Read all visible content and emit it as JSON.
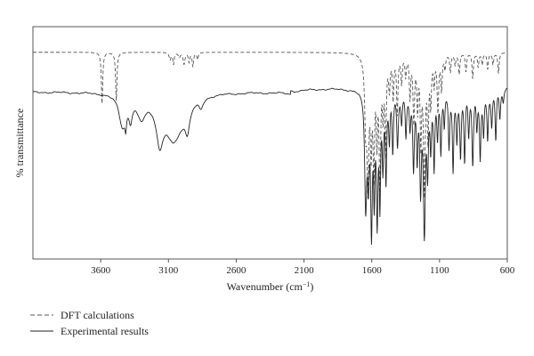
{
  "chart_data": {
    "type": "line",
    "title": "",
    "xlabel": "Wavenumber (cm",
    "xlabel_sup": "−1",
    "xlabel_close": ")",
    "ylabel": "% transmittance",
    "x_reversed": true,
    "xlim": [
      4100,
      600
    ],
    "ylim": [
      0,
      100
    ],
    "x_ticks": [
      3600,
      3100,
      2600,
      2100,
      1600,
      1100,
      600
    ],
    "grid": false,
    "legend_placement": "bottom-left",
    "series": [
      {
        "name": "DFT calculations",
        "style": "dashed",
        "color": "#555555",
        "baseline": 89,
        "peaks": [
          [
            3590,
            22,
            6
          ],
          [
            3485,
            21,
            6
          ],
          [
            3088,
            3,
            8
          ],
          [
            3063,
            5,
            6
          ],
          [
            3020,
            2,
            8
          ],
          [
            2985,
            5,
            8
          ],
          [
            2948,
            4,
            6
          ],
          [
            2920,
            6,
            6
          ],
          [
            2885,
            3,
            6
          ],
          [
            1645,
            28,
            9
          ],
          [
            1628,
            52,
            8
          ],
          [
            1605,
            36,
            7
          ],
          [
            1585,
            48,
            7
          ],
          [
            1562,
            32,
            6
          ],
          [
            1540,
            56,
            7
          ],
          [
            1517,
            22,
            6
          ],
          [
            1498,
            40,
            6
          ],
          [
            1470,
            14,
            7
          ],
          [
            1442,
            18,
            6
          ],
          [
            1412,
            25,
            6
          ],
          [
            1380,
            12,
            6
          ],
          [
            1350,
            9,
            6
          ],
          [
            1318,
            18,
            6
          ],
          [
            1290,
            28,
            7
          ],
          [
            1262,
            22,
            6
          ],
          [
            1238,
            36,
            6
          ],
          [
            1212,
            58,
            8
          ],
          [
            1185,
            34,
            6
          ],
          [
            1165,
            20,
            6
          ],
          [
            1140,
            12,
            6
          ],
          [
            1112,
            24,
            7
          ],
          [
            1085,
            15,
            6
          ],
          [
            1060,
            6,
            6
          ],
          [
            1020,
            8,
            6
          ],
          [
            985,
            5,
            6
          ],
          [
            955,
            9,
            6
          ],
          [
            905,
            8,
            6
          ],
          [
            855,
            11,
            6
          ],
          [
            815,
            6,
            6
          ],
          [
            785,
            5,
            6
          ],
          [
            745,
            7,
            6
          ],
          [
            705,
            5,
            6
          ],
          [
            665,
            9,
            6
          ]
        ]
      },
      {
        "name": "Experimental results",
        "style": "solid",
        "color": "#222222",
        "baseline": 72,
        "peaks": [
          [
            3440,
            13,
            30
          ],
          [
            3415,
            7,
            7
          ],
          [
            3380,
            8,
            14
          ],
          [
            3300,
            9,
            40
          ],
          [
            3165,
            16,
            30
          ],
          [
            3060,
            20,
            85
          ],
          [
            2960,
            10,
            20
          ],
          [
            2860,
            4,
            18
          ],
          [
            2150,
            1,
            80
          ],
          [
            1645,
            48,
            9
          ],
          [
            1625,
            33,
            8
          ],
          [
            1602,
            56,
            7
          ],
          [
            1582,
            40,
            6
          ],
          [
            1560,
            52,
            7
          ],
          [
            1540,
            44,
            6
          ],
          [
            1518,
            30,
            6
          ],
          [
            1495,
            38,
            6
          ],
          [
            1470,
            20,
            6
          ],
          [
            1445,
            26,
            6
          ],
          [
            1410,
            22,
            7
          ],
          [
            1380,
            12,
            6
          ],
          [
            1348,
            18,
            6
          ],
          [
            1318,
            14,
            6
          ],
          [
            1292,
            34,
            7
          ],
          [
            1265,
            28,
            6
          ],
          [
            1240,
            40,
            7
          ],
          [
            1212,
            60,
            9
          ],
          [
            1188,
            30,
            6
          ],
          [
            1165,
            22,
            6
          ],
          [
            1140,
            32,
            6
          ],
          [
            1115,
            18,
            6
          ],
          [
            1090,
            26,
            6
          ],
          [
            1065,
            16,
            6
          ],
          [
            1030,
            24,
            6
          ],
          [
            1000,
            34,
            6
          ],
          [
            972,
            20,
            6
          ],
          [
            945,
            26,
            6
          ],
          [
            915,
            30,
            6
          ],
          [
            885,
            18,
            6
          ],
          [
            855,
            32,
            7
          ],
          [
            825,
            16,
            6
          ],
          [
            800,
            28,
            6
          ],
          [
            775,
            18,
            6
          ],
          [
            745,
            20,
            6
          ],
          [
            715,
            14,
            6
          ],
          [
            685,
            22,
            6
          ],
          [
            655,
            12,
            6
          ],
          [
            630,
            6,
            6
          ]
        ]
      }
    ]
  }
}
